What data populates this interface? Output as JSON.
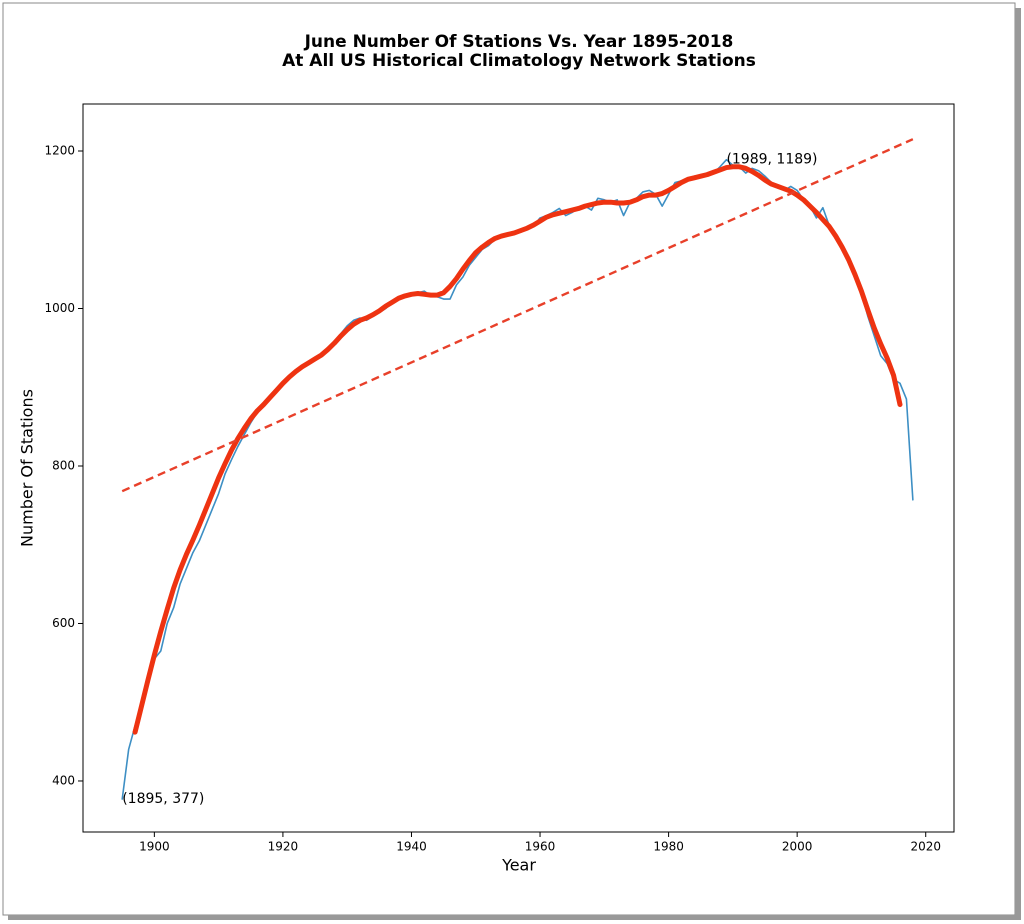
{
  "chart_data": {
    "type": "line",
    "title": "June Number Of Stations Vs. Year 1895-2018",
    "subtitle": "At All US Historical Climatology Network Stations",
    "xlabel": "Year",
    "ylabel": "Number Of Stations",
    "x": [
      1895,
      1896,
      1897,
      1898,
      1899,
      1900,
      1901,
      1902,
      1903,
      1904,
      1905,
      1906,
      1907,
      1908,
      1909,
      1910,
      1911,
      1912,
      1913,
      1914,
      1915,
      1916,
      1917,
      1918,
      1919,
      1920,
      1921,
      1922,
      1923,
      1924,
      1925,
      1926,
      1927,
      1928,
      1929,
      1930,
      1931,
      1932,
      1933,
      1934,
      1935,
      1936,
      1937,
      1938,
      1939,
      1940,
      1941,
      1942,
      1943,
      1944,
      1945,
      1946,
      1947,
      1948,
      1949,
      1950,
      1951,
      1952,
      1953,
      1954,
      1955,
      1956,
      1957,
      1958,
      1959,
      1960,
      1961,
      1962,
      1963,
      1964,
      1965,
      1966,
      1967,
      1968,
      1969,
      1970,
      1971,
      1972,
      1973,
      1974,
      1975,
      1976,
      1977,
      1978,
      1979,
      1980,
      1981,
      1982,
      1983,
      1984,
      1985,
      1986,
      1987,
      1988,
      1989,
      1990,
      1991,
      1992,
      1993,
      1994,
      1995,
      1996,
      1997,
      1998,
      1999,
      2000,
      2001,
      2002,
      2003,
      2004,
      2005,
      2006,
      2007,
      2008,
      2009,
      2010,
      2011,
      2012,
      2013,
      2014,
      2015,
      2016,
      2017,
      2018
    ],
    "series": [
      {
        "color": "#3d8fc4",
        "linestyle": "solid",
        "values": [
          377,
          440,
          470,
          495,
          525,
          555,
          565,
          600,
          620,
          650,
          670,
          690,
          705,
          725,
          745,
          765,
          790,
          808,
          825,
          840,
          855,
          868,
          880,
          885,
          895,
          905,
          915,
          920,
          928,
          930,
          935,
          940,
          948,
          958,
          968,
          978,
          985,
          988,
          985,
          990,
          995,
          1000,
          1008,
          1012,
          1015,
          1018,
          1020,
          1022,
          1016,
          1015,
          1012,
          1012,
          1030,
          1040,
          1055,
          1065,
          1075,
          1080,
          1088,
          1090,
          1095,
          1095,
          1100,
          1100,
          1105,
          1115,
          1118,
          1122,
          1127,
          1118,
          1122,
          1128,
          1130,
          1125,
          1140,
          1138,
          1135,
          1138,
          1118,
          1135,
          1140,
          1148,
          1150,
          1145,
          1130,
          1145,
          1160,
          1162,
          1165,
          1168,
          1168,
          1170,
          1172,
          1180,
          1189,
          1182,
          1180,
          1172,
          1178,
          1175,
          1168,
          1160,
          1155,
          1150,
          1155,
          1150,
          1138,
          1130,
          1115,
          1128,
          1105,
          1095,
          1080,
          1065,
          1045,
          1020,
          990,
          965,
          940,
          930,
          910,
          905,
          885,
          757
        ]
      },
      {
        "color": "#ee3311",
        "linestyle": "solid",
        "values": [
          null,
          null,
          462,
          495,
          528,
          560,
          590,
          618,
          645,
          668,
          688,
          706,
          725,
          745,
          765,
          785,
          803,
          820,
          835,
          848,
          860,
          870,
          878,
          887,
          896,
          905,
          913,
          920,
          926,
          931,
          936,
          941,
          948,
          956,
          965,
          973,
          980,
          985,
          988,
          992,
          997,
          1003,
          1008,
          1013,
          1016,
          1018,
          1019,
          1018,
          1017,
          1017,
          1020,
          1028,
          1038,
          1050,
          1061,
          1071,
          1078,
          1084,
          1089,
          1092,
          1094,
          1096,
          1099,
          1102,
          1106,
          1111,
          1116,
          1119,
          1121,
          1123,
          1125,
          1127,
          1130,
          1132,
          1134,
          1135,
          1135,
          1134,
          1134,
          1135,
          1138,
          1142,
          1144,
          1144,
          1146,
          1150,
          1155,
          1160,
          1164,
          1166,
          1168,
          1170,
          1173,
          1176,
          1179,
          1180,
          1180,
          1178,
          1174,
          1169,
          1163,
          1158,
          1155,
          1152,
          1149,
          1144,
          1138,
          1130,
          1122,
          1113,
          1104,
          1092,
          1078,
          1062,
          1043,
          1022,
          998,
          975,
          955,
          937,
          915,
          878,
          null,
          null
        ]
      },
      {
        "color": "#e8402a",
        "linestyle": "dashed",
        "x": [
          1895,
          2018
        ],
        "values": [
          768,
          1215
        ]
      }
    ],
    "annotations": [
      {
        "text": "(1895, 377)",
        "x": 1895,
        "y": 377
      },
      {
        "text": "(1989, 1189)",
        "x": 1989,
        "y": 1189
      }
    ],
    "xlim": [
      1888.9,
      2024.4
    ],
    "ylim": [
      335.2,
      1259.7
    ],
    "xticks": [
      1900,
      1920,
      1940,
      1960,
      1980,
      2000,
      2020
    ],
    "yticks": [
      400,
      600,
      800,
      1000,
      1200
    ]
  }
}
